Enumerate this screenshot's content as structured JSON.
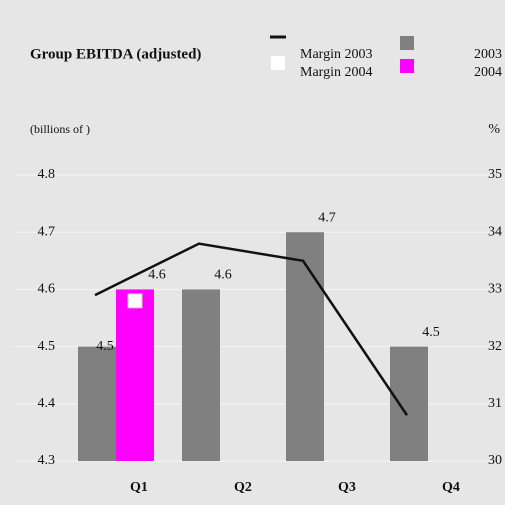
{
  "chart_data": {
    "type": "bar",
    "title": "Group EBITDA (adjusted)",
    "y_label": "(billions of  )",
    "y2_label": "%",
    "categories": [
      "Q1",
      "Q2",
      "Q3",
      "Q4"
    ],
    "series": [
      {
        "name": "Margin 2003",
        "type": "line",
        "axis": "y2",
        "color": "#111111",
        "values": [
          32.9,
          33.8,
          33.5,
          30.8
        ]
      },
      {
        "name": "Margin 2004",
        "type": "marker",
        "axis": "y2",
        "color": "#ffffff",
        "values": [
          32.8,
          null,
          null,
          null
        ]
      },
      {
        "name": "2003",
        "type": "bar",
        "color": "#808080",
        "values": [
          4.5,
          4.6,
          4.7,
          4.5
        ]
      },
      {
        "name": "2004",
        "type": "bar",
        "color": "#ff00ff",
        "values": [
          4.6,
          null,
          null,
          null
        ]
      }
    ],
    "ylim": [
      4.3,
      4.8
    ],
    "yticks": [
      4.3,
      4.4,
      4.5,
      4.6,
      4.7,
      4.8
    ],
    "y2lim": [
      30,
      35
    ],
    "y2ticks": [
      30,
      31,
      32,
      33,
      34,
      35
    ],
    "grid": true
  }
}
